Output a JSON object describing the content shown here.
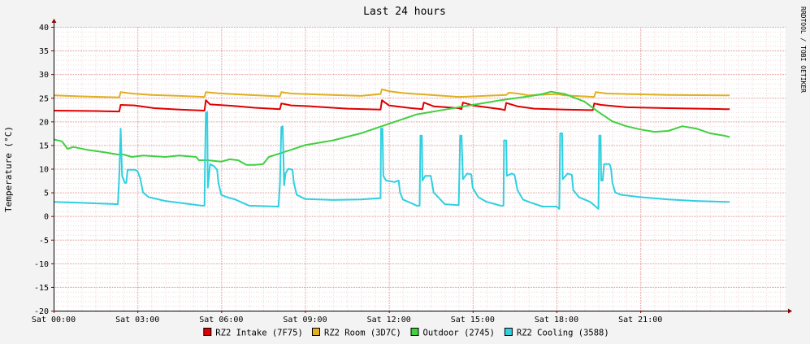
{
  "chart_data": {
    "type": "line",
    "title": "Last 24 hours",
    "ylabel": "Temperature (°C)",
    "xlabel": "",
    "watermark": "RRDTOOL / TOBI OETIKER",
    "ylim": [
      -20,
      40
    ],
    "yticks": [
      40,
      35,
      30,
      25,
      20,
      15,
      10,
      5,
      0,
      -5,
      -10,
      -15,
      -20
    ],
    "xlim": [
      0,
      26.2
    ],
    "xticks": [
      {
        "x": 0,
        "label": "Sat 00:00"
      },
      {
        "x": 3,
        "label": "Sat 03:00"
      },
      {
        "x": 6,
        "label": "Sat 06:00"
      },
      {
        "x": 9,
        "label": "Sat 09:00"
      },
      {
        "x": 12,
        "label": "Sat 12:00"
      },
      {
        "x": 15,
        "label": "Sat 15:00"
      },
      {
        "x": 18,
        "label": "Sat 18:00"
      },
      {
        "x": 21,
        "label": "Sat 21:00"
      }
    ],
    "grid": true,
    "legend_position": "bottom",
    "colors": {
      "background": "#f3f3f3",
      "plot_background": "#ffffff",
      "grid": "#e8a0a0",
      "axis": "#8b0000"
    },
    "series": [
      {
        "name": "RZ2 Intake (7F75)",
        "color": "#e00000",
        "points": [
          [
            0,
            22.3
          ],
          [
            1.5,
            22.2
          ],
          [
            2.35,
            22.1
          ],
          [
            2.4,
            23.5
          ],
          [
            2.9,
            23.4
          ],
          [
            3.6,
            22.8
          ],
          [
            4.5,
            22.5
          ],
          [
            5.4,
            22.3
          ],
          [
            5.45,
            24.5
          ],
          [
            5.6,
            23.6
          ],
          [
            6.4,
            23.3
          ],
          [
            7.2,
            22.9
          ],
          [
            8.1,
            22.6
          ],
          [
            8.15,
            23.8
          ],
          [
            8.5,
            23.4
          ],
          [
            9.2,
            23.2
          ],
          [
            10.5,
            22.7
          ],
          [
            11.7,
            22.5
          ],
          [
            11.75,
            24.5
          ],
          [
            12.0,
            23.4
          ],
          [
            12.8,
            22.8
          ],
          [
            13.2,
            22.6
          ],
          [
            13.25,
            24.0
          ],
          [
            13.6,
            23.2
          ],
          [
            14.5,
            22.8
          ],
          [
            14.6,
            22.6
          ],
          [
            14.65,
            24.0
          ],
          [
            15.0,
            23.4
          ],
          [
            16.0,
            22.6
          ],
          [
            16.15,
            22.4
          ],
          [
            16.2,
            23.9
          ],
          [
            16.6,
            23.2
          ],
          [
            17.2,
            22.7
          ],
          [
            18.3,
            22.5
          ],
          [
            19.2,
            22.4
          ],
          [
            19.3,
            22.4
          ],
          [
            19.35,
            23.8
          ],
          [
            19.6,
            23.5
          ],
          [
            20.5,
            23.0
          ],
          [
            22.0,
            22.8
          ],
          [
            24.0,
            22.6
          ],
          [
            24.2,
            22.6
          ]
        ]
      },
      {
        "name": "RZ2 Room (3D7C)",
        "color": "#e0b020",
        "points": [
          [
            0,
            25.5
          ],
          [
            1.0,
            25.3
          ],
          [
            2.35,
            25.1
          ],
          [
            2.4,
            26.2
          ],
          [
            2.8,
            25.9
          ],
          [
            3.5,
            25.6
          ],
          [
            4.5,
            25.4
          ],
          [
            5.4,
            25.2
          ],
          [
            5.45,
            26.2
          ],
          [
            6.0,
            25.9
          ],
          [
            7.0,
            25.6
          ],
          [
            8.1,
            25.3
          ],
          [
            8.15,
            26.2
          ],
          [
            8.5,
            25.9
          ],
          [
            9.5,
            25.7
          ],
          [
            11.0,
            25.4
          ],
          [
            11.7,
            25.8
          ],
          [
            11.75,
            26.8
          ],
          [
            12.0,
            26.4
          ],
          [
            12.5,
            26.0
          ],
          [
            13.5,
            25.6
          ],
          [
            14.5,
            25.2
          ],
          [
            15.0,
            25.3
          ],
          [
            16.2,
            25.6
          ],
          [
            16.3,
            26.1
          ],
          [
            16.6,
            25.9
          ],
          [
            17.0,
            25.5
          ],
          [
            18.0,
            25.8
          ],
          [
            18.3,
            25.5
          ],
          [
            19.0,
            25.3
          ],
          [
            19.35,
            25.2
          ],
          [
            19.4,
            26.2
          ],
          [
            19.8,
            25.9
          ],
          [
            20.5,
            25.8
          ],
          [
            22.0,
            25.6
          ],
          [
            24.2,
            25.5
          ]
        ]
      },
      {
        "name": "Outdoor (2745)",
        "color": "#40d040",
        "points": [
          [
            0,
            16.2
          ],
          [
            0.3,
            15.8
          ],
          [
            0.5,
            14.2
          ],
          [
            0.7,
            14.6
          ],
          [
            1.2,
            14.0
          ],
          [
            1.8,
            13.5
          ],
          [
            2.3,
            13.0
          ],
          [
            2.5,
            13.0
          ],
          [
            2.8,
            12.5
          ],
          [
            3.2,
            12.8
          ],
          [
            4.0,
            12.5
          ],
          [
            4.5,
            12.8
          ],
          [
            5.1,
            12.5
          ],
          [
            5.2,
            11.8
          ],
          [
            5.5,
            11.8
          ],
          [
            6.0,
            11.5
          ],
          [
            6.3,
            12.0
          ],
          [
            6.6,
            11.8
          ],
          [
            6.9,
            10.8
          ],
          [
            7.2,
            10.8
          ],
          [
            7.5,
            11.0
          ],
          [
            7.7,
            12.5
          ],
          [
            8.5,
            14.0
          ],
          [
            9.0,
            15.0
          ],
          [
            10.0,
            16.0
          ],
          [
            11.0,
            17.5
          ],
          [
            12.0,
            19.5
          ],
          [
            12.5,
            20.5
          ],
          [
            13.0,
            21.5
          ],
          [
            14.0,
            22.5
          ],
          [
            14.5,
            23.0
          ],
          [
            15.0,
            23.5
          ],
          [
            15.5,
            24.0
          ],
          [
            16.0,
            24.5
          ],
          [
            17.0,
            25.3
          ],
          [
            17.5,
            25.8
          ],
          [
            17.8,
            26.3
          ],
          [
            18.3,
            25.8
          ],
          [
            19.0,
            24.2
          ],
          [
            19.5,
            22.0
          ],
          [
            20.0,
            20.0
          ],
          [
            20.5,
            19.0
          ],
          [
            21.0,
            18.3
          ],
          [
            21.5,
            17.8
          ],
          [
            22.0,
            18.0
          ],
          [
            22.5,
            19.0
          ],
          [
            23.0,
            18.5
          ],
          [
            23.5,
            17.5
          ],
          [
            24.0,
            17.0
          ],
          [
            24.2,
            16.7
          ]
        ]
      },
      {
        "name": "RZ2 Cooling (3588)",
        "color": "#30d0e0",
        "points": [
          [
            0,
            3.0
          ],
          [
            1.0,
            2.8
          ],
          [
            2.3,
            2.5
          ],
          [
            2.35,
            8.5
          ],
          [
            2.4,
            18.5
          ],
          [
            2.45,
            8.5
          ],
          [
            2.55,
            7.0
          ],
          [
            2.6,
            7.0
          ],
          [
            2.65,
            9.8
          ],
          [
            2.9,
            9.8
          ],
          [
            3.0,
            9.5
          ],
          [
            3.1,
            8.0
          ],
          [
            3.2,
            5.0
          ],
          [
            3.4,
            4.0
          ],
          [
            4.0,
            3.2
          ],
          [
            5.3,
            2.2
          ],
          [
            5.4,
            2.2
          ],
          [
            5.42,
            12.0
          ],
          [
            5.45,
            21.8
          ],
          [
            5.5,
            22.0
          ],
          [
            5.52,
            6.0
          ],
          [
            5.6,
            11.0
          ],
          [
            5.75,
            10.5
          ],
          [
            5.85,
            9.8
          ],
          [
            5.9,
            7.0
          ],
          [
            6.0,
            4.5
          ],
          [
            6.2,
            4.0
          ],
          [
            6.5,
            3.5
          ],
          [
            7.0,
            2.2
          ],
          [
            8.0,
            2.0
          ],
          [
            8.05,
            2.0
          ],
          [
            8.1,
            7.0
          ],
          [
            8.15,
            18.8
          ],
          [
            8.2,
            19.0
          ],
          [
            8.25,
            6.5
          ],
          [
            8.3,
            9.0
          ],
          [
            8.4,
            10.0
          ],
          [
            8.55,
            9.8
          ],
          [
            8.6,
            7.0
          ],
          [
            8.7,
            4.5
          ],
          [
            9.0,
            3.6
          ],
          [
            10.0,
            3.4
          ],
          [
            11.0,
            3.5
          ],
          [
            11.7,
            3.8
          ],
          [
            11.72,
            18.5
          ],
          [
            11.77,
            18.5
          ],
          [
            11.8,
            8.5
          ],
          [
            11.9,
            7.5
          ],
          [
            12.2,
            7.2
          ],
          [
            12.35,
            7.5
          ],
          [
            12.4,
            5.0
          ],
          [
            12.5,
            3.5
          ],
          [
            13.0,
            2.2
          ],
          [
            13.1,
            2.2
          ],
          [
            13.13,
            17.0
          ],
          [
            13.18,
            17.0
          ],
          [
            13.2,
            7.5
          ],
          [
            13.3,
            8.5
          ],
          [
            13.5,
            8.5
          ],
          [
            13.6,
            5.0
          ],
          [
            14.0,
            2.5
          ],
          [
            14.5,
            2.3
          ],
          [
            14.55,
            17.0
          ],
          [
            14.6,
            17.0
          ],
          [
            14.65,
            7.8
          ],
          [
            14.8,
            9.0
          ],
          [
            14.95,
            8.8
          ],
          [
            15.0,
            6.0
          ],
          [
            15.2,
            4.0
          ],
          [
            15.5,
            3.0
          ],
          [
            16.0,
            2.2
          ],
          [
            16.1,
            2.2
          ],
          [
            16.12,
            16.0
          ],
          [
            16.2,
            16.0
          ],
          [
            16.22,
            8.5
          ],
          [
            16.4,
            9.0
          ],
          [
            16.5,
            8.7
          ],
          [
            16.6,
            5.5
          ],
          [
            16.8,
            3.5
          ],
          [
            17.0,
            3.0
          ],
          [
            17.5,
            2.0
          ],
          [
            18.0,
            2.0
          ],
          [
            18.1,
            1.5
          ],
          [
            18.13,
            17.5
          ],
          [
            18.2,
            17.5
          ],
          [
            18.22,
            7.8
          ],
          [
            18.4,
            9.0
          ],
          [
            18.55,
            8.7
          ],
          [
            18.6,
            5.5
          ],
          [
            18.8,
            4.0
          ],
          [
            19.2,
            3.0
          ],
          [
            19.4,
            2.0
          ],
          [
            19.5,
            1.5
          ],
          [
            19.53,
            17.0
          ],
          [
            19.58,
            17.0
          ],
          [
            19.6,
            7.5
          ],
          [
            19.65,
            7.5
          ],
          [
            19.7,
            11.0
          ],
          [
            19.9,
            11.0
          ],
          [
            19.95,
            10.0
          ],
          [
            20.0,
            7.0
          ],
          [
            20.1,
            5.0
          ],
          [
            20.3,
            4.5
          ],
          [
            21.0,
            4.0
          ],
          [
            22.0,
            3.5
          ],
          [
            23.0,
            3.2
          ],
          [
            24.0,
            3.0
          ],
          [
            24.2,
            3.0
          ]
        ]
      }
    ]
  }
}
